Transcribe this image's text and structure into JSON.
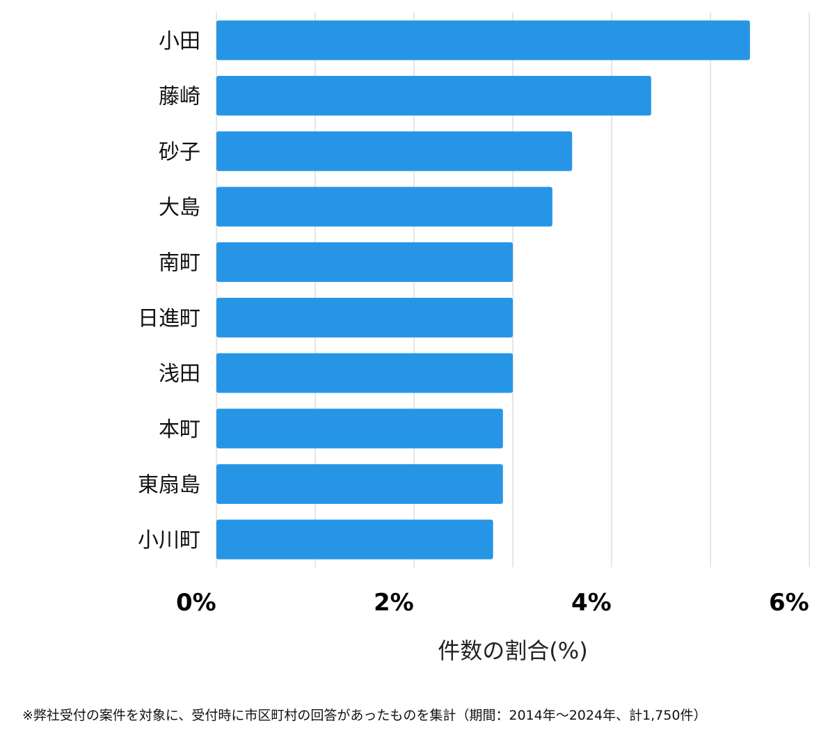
{
  "chart_data": {
    "type": "bar",
    "orientation": "horizontal",
    "categories": [
      "小田",
      "藤崎",
      "砂子",
      "大島",
      "南町",
      "日進町",
      "浅田",
      "本町",
      "東扇島",
      "小川町"
    ],
    "values": [
      5.4,
      4.4,
      3.6,
      3.4,
      3.0,
      3.0,
      3.0,
      2.9,
      2.9,
      2.8
    ],
    "xlabel": "件数の割合(%)",
    "xlim": [
      0,
      6
    ],
    "xticks": [
      0,
      2,
      4,
      6
    ],
    "xtick_labels": [
      "0%",
      "2%",
      "4%",
      "6%"
    ],
    "gridlines": [
      0,
      1,
      2,
      3,
      4,
      5,
      6
    ],
    "grid": true,
    "bar_color": "#2795e6",
    "grid_color": "#dddddd"
  },
  "footnote": "※弊社受付の案件を対象に、受付時に市区町村の回答があったものを集計（期間：2014年〜2024年、計1,750件）"
}
